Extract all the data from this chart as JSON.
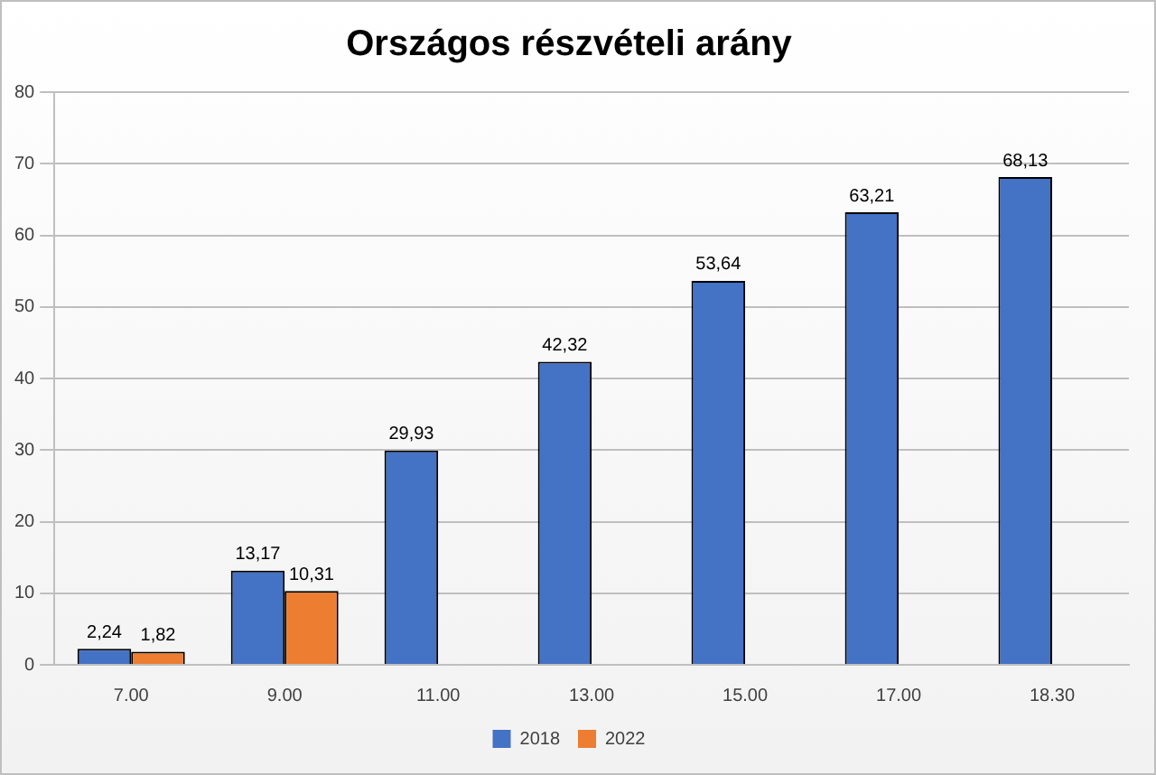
{
  "chart_data": {
    "type": "bar",
    "title": "Országos részvételi arány",
    "categories": [
      "7.00",
      "9.00",
      "11.00",
      "13.00",
      "15.00",
      "17.00",
      "18.30"
    ],
    "series": [
      {
        "name": "2018",
        "color": "#4472c4",
        "values": [
          2.24,
          13.17,
          29.93,
          42.32,
          53.64,
          63.21,
          68.13
        ],
        "value_labels": [
          "2,24",
          "13,17",
          "29,93",
          "42,32",
          "53,64",
          "63,21",
          "68,13"
        ]
      },
      {
        "name": "2022",
        "color": "#ed7d31",
        "values": [
          1.82,
          10.31,
          null,
          null,
          null,
          null,
          null
        ],
        "value_labels": [
          "1,82",
          "10,31",
          null,
          null,
          null,
          null,
          null
        ]
      }
    ],
    "ylim": [
      0,
      80
    ],
    "yticks": [
      0,
      10,
      20,
      30,
      40,
      50,
      60,
      70,
      80
    ],
    "grid": "y",
    "legend": "bottom"
  }
}
